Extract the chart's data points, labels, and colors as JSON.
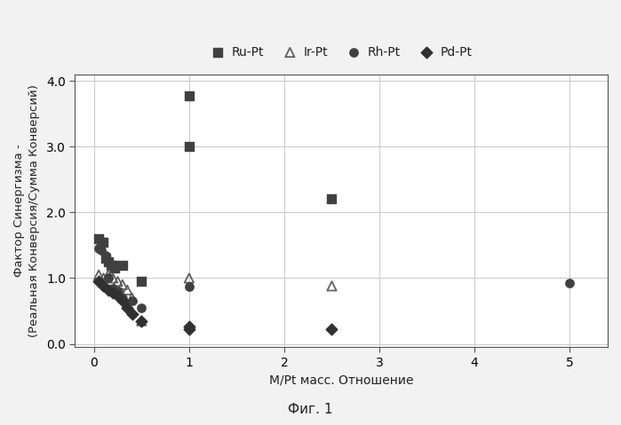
{
  "xlabel": "М/Pt масс. Отношение",
  "ylabel": "Фактор Синергизма -\n(Реальная Конверсия/Сумма Конверсий)",
  "fig_caption": "Фиг. 1",
  "xlim": [
    -0.2,
    5.4
  ],
  "ylim": [
    -0.05,
    4.1
  ],
  "xticks": [
    0,
    1,
    2,
    3,
    4,
    5
  ],
  "yticks": [
    0.0,
    1.0,
    2.0,
    3.0,
    4.0
  ],
  "ru_pt_x": [
    0.05,
    0.08,
    0.1,
    0.12,
    0.15,
    0.18,
    0.2,
    0.22,
    0.3,
    0.5,
    1.0,
    1.0,
    2.5
  ],
  "ru_pt_y": [
    1.6,
    1.55,
    1.55,
    1.3,
    1.25,
    1.2,
    1.2,
    1.15,
    1.2,
    0.95,
    3.77,
    3.0,
    2.2
  ],
  "ir_pt_x": [
    0.05,
    0.1,
    0.15,
    0.2,
    0.25,
    0.3,
    0.35,
    0.4,
    0.5,
    1.0,
    2.5
  ],
  "ir_pt_y": [
    1.05,
    1.0,
    1.05,
    1.0,
    0.95,
    0.9,
    0.82,
    0.7,
    0.35,
    1.0,
    0.88
  ],
  "rh_pt_x": [
    0.05,
    0.08,
    0.12,
    0.15,
    0.2,
    0.25,
    0.3,
    0.4,
    0.5,
    1.0,
    5.0
  ],
  "rh_pt_y": [
    1.45,
    1.42,
    1.35,
    1.0,
    0.85,
    0.8,
    0.7,
    0.65,
    0.55,
    0.87,
    0.92
  ],
  "pd_pt_x": [
    0.05,
    0.1,
    0.15,
    0.2,
    0.25,
    0.3,
    0.35,
    0.4,
    0.5,
    1.0,
    1.0,
    2.5
  ],
  "pd_pt_y": [
    0.95,
    0.88,
    0.82,
    0.78,
    0.72,
    0.65,
    0.55,
    0.45,
    0.35,
    0.27,
    0.22,
    0.22
  ],
  "bg_color": "#f2f2f2",
  "plot_bg": "#ffffff",
  "grid_color": "#cccccc"
}
